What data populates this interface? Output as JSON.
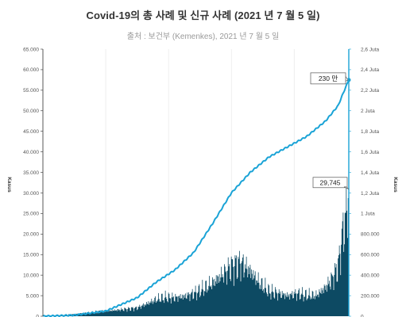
{
  "title": {
    "text": "Covid-19의 총 사례 및 신규 사례 (2021 년 7 월 5 일)"
  },
  "subtitle": {
    "text": "출처 : 보건부 (Kemenkes), 2021 년 7 월 5 일"
  },
  "chart_data": {
    "type": "bar",
    "title": "Covid-19의 총 사례 및 신규 사례 (2021 년 7 월 5 일)",
    "subtitle": "출처 : 보건부 (Kemenkes), 2021 년 7 월 5 일",
    "ylabel_left": "Kasus",
    "ylabel_right": "Kasus",
    "y_left_ticks": [
      "0",
      "5.000",
      "10.000",
      "15.000",
      "20.000",
      "25.000",
      "30.000",
      "35.000",
      "40.000",
      "45.000",
      "50.000",
      "55.000",
      "60.000",
      "65.000"
    ],
    "y_right_ticks": [
      "0",
      "200.000",
      "400.000",
      "600.000",
      "800.000",
      "1 Juta",
      "1,2 Juta",
      "1,4 Juta",
      "1,6 Juta",
      "1,8 Juta",
      "2 Juta",
      "2,2 Juta",
      "2,4 Juta",
      "2,6 Juta"
    ],
    "y_left_range": [
      0,
      65000
    ],
    "y_right_range": [
      0,
      2600000
    ],
    "grid": "vertical",
    "x_range_days": [
      0,
      487
    ],
    "x_gridlines_days": [
      0,
      100,
      200,
      300,
      400
    ],
    "colors": {
      "bars": "#0d4a63",
      "line": "#1aa3d6",
      "right_axis": "#1aa3d6"
    },
    "series": [
      {
        "type": "bar",
        "axis": "left",
        "name": "",
        "x_day": [
          0,
          25,
          50,
          75,
          100,
          125,
          150,
          165,
          180,
          195,
          210,
          225,
          240,
          255,
          270,
          285,
          300,
          315,
          330,
          345,
          360,
          375,
          390,
          405,
          420,
          435,
          450,
          460,
          470,
          477,
          482,
          485,
          487
        ],
        "values": [
          100,
          200,
          500,
          900,
          1200,
          1600,
          2000,
          3000,
          4000,
          4500,
          4500,
          4800,
          5500,
          6500,
          8000,
          10000,
          12000,
          13000,
          11000,
          8000,
          6000,
          5500,
          5000,
          5500,
          5000,
          5000,
          7000,
          9000,
          12000,
          20000,
          24000,
          27000,
          29745
        ]
      },
      {
        "type": "line",
        "axis": "right",
        "name": "",
        "x_day": [
          0,
          50,
          100,
          150,
          180,
          210,
          240,
          270,
          300,
          330,
          360,
          390,
          420,
          450,
          470,
          480,
          487
        ],
        "values": [
          0,
          10000,
          50000,
          180000,
          330000,
          450000,
          620000,
          900000,
          1200000,
          1400000,
          1550000,
          1650000,
          1750000,
          1900000,
          2050000,
          2200000,
          2300000
        ]
      }
    ],
    "annotations": [
      {
        "label": "230 만",
        "series": 1,
        "x_day": 487,
        "y": 2300000
      },
      {
        "label": "29,745",
        "series": 0,
        "x_day": 487,
        "y": 29745
      }
    ]
  }
}
